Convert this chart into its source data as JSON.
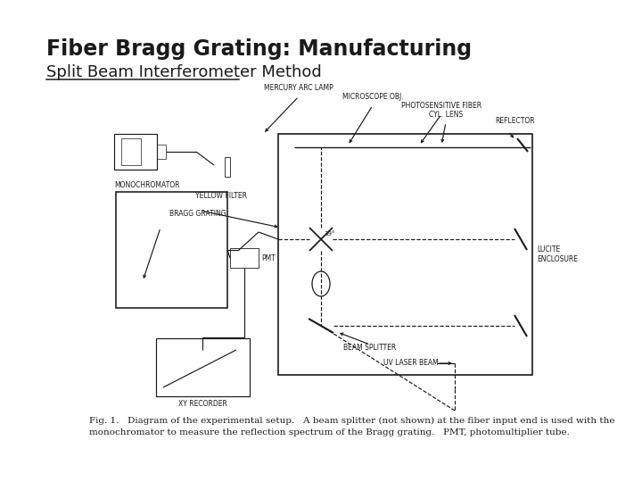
{
  "title": "Fiber Bragg Grating: Manufacturing",
  "subtitle": "Split Beam Interferometer Method",
  "bg_color": "#ffffff",
  "title_fontsize": 17,
  "subtitle_fontsize": 13,
  "box_color": "#1a1a1a",
  "label_fs": 5.5,
  "caption_line1": "Fig. 1.   Diagram of the experimental setup.   A beam splitter (not shown) at the fiber input end is used with the",
  "caption_line2": "monochromator to measure the reflection spectrum of the Bragg grating.   PMT, photomultiplier tube.",
  "caption_fs": 7.5
}
